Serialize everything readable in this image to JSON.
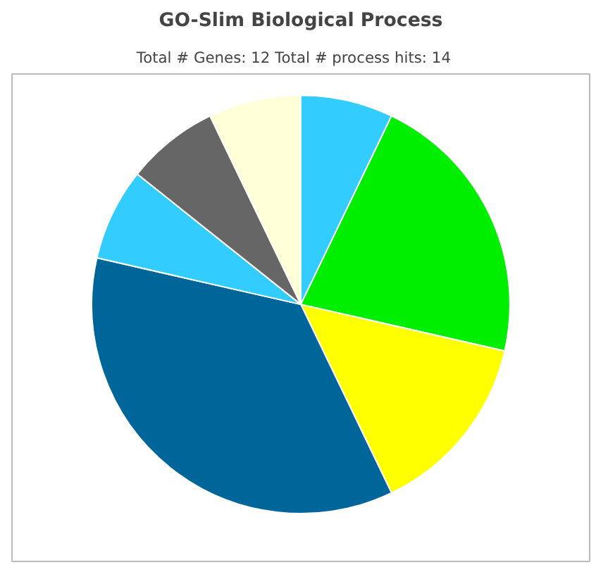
{
  "chart_data": {
    "type": "pie",
    "title": "GO-Slim Biological Process",
    "subtitle": "Total # Genes: 12    Total # process hits: 14",
    "categories": [
      null,
      null,
      null,
      null,
      null,
      null,
      null
    ],
    "values": [
      7.14,
      21.43,
      14.29,
      35.71,
      7.14,
      7.14,
      7.15
    ],
    "colors": [
      "#33ccff",
      "#00ee00",
      "#ffff00",
      "#006699",
      "#33ccff",
      "#666666",
      "#ffffd8"
    ]
  }
}
